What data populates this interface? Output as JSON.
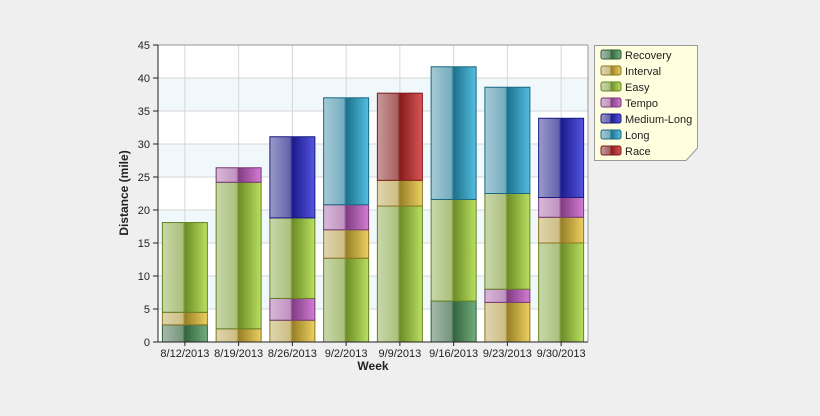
{
  "chart_data": {
    "type": "bar",
    "stacked": true,
    "xlabel": "Week",
    "ylabel": "Distance (mile)",
    "ylim": [
      0,
      45
    ],
    "yticks": [
      0,
      5,
      10,
      15,
      20,
      25,
      30,
      35,
      40,
      45
    ],
    "grid": true,
    "legend_placement": "right",
    "categories": [
      "8/12/2013",
      "8/19/2013",
      "8/26/2013",
      "9/2/2013",
      "9/9/2013",
      "9/16/2013",
      "9/23/2013",
      "9/30/2013"
    ],
    "series": [
      {
        "name": "Recovery",
        "color": "#4f9a5e"
      },
      {
        "name": "Interval",
        "color": "#e8c43a"
      },
      {
        "name": "Easy",
        "color": "#a8d83a"
      },
      {
        "name": "Tempo",
        "color": "#c85cc8"
      },
      {
        "name": "Medium-Long",
        "color": "#2a2ad8"
      },
      {
        "name": "Long",
        "color": "#2aaed8"
      },
      {
        "name": "Race",
        "color": "#d02a2a"
      }
    ],
    "stacks": [
      [
        {
          "series": "Recovery",
          "value": 2.6
        },
        {
          "series": "Interval",
          "value": 1.9
        },
        {
          "series": "Easy",
          "value": 13.6
        }
      ],
      [
        {
          "series": "Interval",
          "value": 2.0
        },
        {
          "series": "Easy",
          "value": 22.2
        },
        {
          "series": "Tempo",
          "value": 2.2
        }
      ],
      [
        {
          "series": "Interval",
          "value": 3.3
        },
        {
          "series": "Tempo",
          "value": 3.3
        },
        {
          "series": "Easy",
          "value": 12.2
        },
        {
          "series": "Medium-Long",
          "value": 12.3
        }
      ],
      [
        {
          "series": "Easy",
          "value": 12.7
        },
        {
          "series": "Interval",
          "value": 4.3
        },
        {
          "series": "Tempo",
          "value": 3.8
        },
        {
          "series": "Long",
          "value": 16.2
        }
      ],
      [
        {
          "series": "Easy",
          "value": 20.6
        },
        {
          "series": "Interval",
          "value": 3.9
        },
        {
          "series": "Race",
          "value": 13.2
        }
      ],
      [
        {
          "series": "Recovery",
          "value": 6.2
        },
        {
          "series": "Easy",
          "value": 15.4
        },
        {
          "series": "Long",
          "value": 20.1
        }
      ],
      [
        {
          "series": "Interval",
          "value": 6.0
        },
        {
          "series": "Tempo",
          "value": 2.0
        },
        {
          "series": "Easy",
          "value": 14.5
        },
        {
          "series": "Long",
          "value": 16.1
        }
      ],
      [
        {
          "series": "Easy",
          "value": 15.0
        },
        {
          "series": "Interval",
          "value": 3.9
        },
        {
          "series": "Tempo",
          "value": 3.0
        },
        {
          "series": "Medium-Long",
          "value": 12.0
        }
      ]
    ]
  }
}
